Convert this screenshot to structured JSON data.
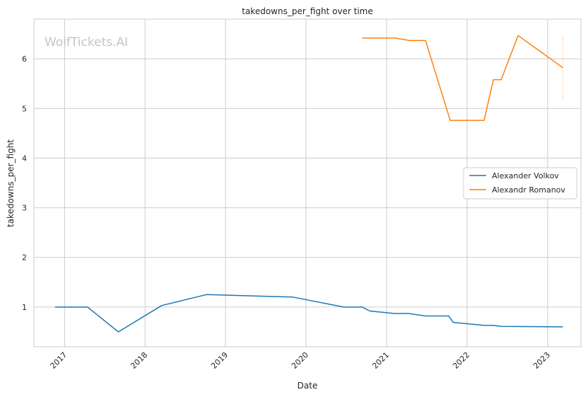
{
  "watermark": "WolfTickets.AI",
  "chart_data": {
    "type": "line",
    "title": "takedowns_per_fight over time",
    "xlabel": "Date",
    "ylabel": "takedowns_per_fight",
    "x_ticks": [
      "2017",
      "2018",
      "2019",
      "2020",
      "2021",
      "2022",
      "2023"
    ],
    "y_ticks": [
      "1",
      "2",
      "3",
      "4",
      "5",
      "6"
    ],
    "xlim": [
      "2016-08-15",
      "2023-06-01"
    ],
    "ylim": [
      0.2,
      6.8
    ],
    "grid": true,
    "legend_position": "center-right",
    "series": [
      {
        "name": "Alexander Volkov",
        "color": "#1f77b4",
        "points": [
          [
            "2016-11-19",
            1.0
          ],
          [
            "2017-04-15",
            1.0
          ],
          [
            "2017-09-02",
            0.5
          ],
          [
            "2018-03-17",
            1.03
          ],
          [
            "2018-10-06",
            1.25
          ],
          [
            "2019-11-02",
            1.2
          ],
          [
            "2020-06-20",
            1.0
          ],
          [
            "2020-09-12",
            1.0
          ],
          [
            "2020-10-17",
            0.92
          ],
          [
            "2021-02-06",
            0.87
          ],
          [
            "2021-04-10",
            0.87
          ],
          [
            "2021-06-26",
            0.82
          ],
          [
            "2021-10-09",
            0.82
          ],
          [
            "2021-10-30",
            0.69
          ],
          [
            "2022-03-19",
            0.63
          ],
          [
            "2022-04-30",
            0.63
          ],
          [
            "2022-06-04",
            0.61
          ],
          [
            "2023-03-11",
            0.6
          ]
        ]
      },
      {
        "name": "Alexandr Romanov",
        "color": "#ff7f0e",
        "points": [
          [
            "2020-09-12",
            6.42
          ],
          [
            "2021-02-06",
            6.42
          ],
          [
            "2021-04-17",
            6.37
          ],
          [
            "2021-06-26",
            6.37
          ],
          [
            "2021-10-16",
            4.76
          ],
          [
            "2022-03-19",
            4.76
          ],
          [
            "2022-04-30",
            5.58
          ],
          [
            "2022-06-04",
            5.58
          ],
          [
            "2022-08-20",
            6.47
          ],
          [
            "2023-03-11",
            5.82
          ]
        ]
      }
    ]
  }
}
